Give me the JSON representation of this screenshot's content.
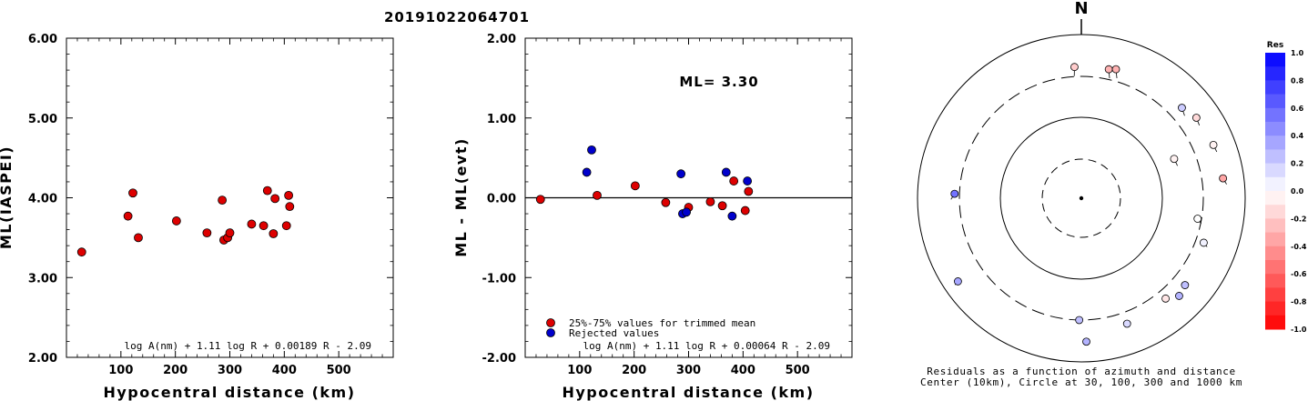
{
  "title": "20191022064701",
  "chart_data": [
    {
      "type": "scatter",
      "xlabel": "Hypocentral distance (km)",
      "ylabel": "ML(IASPEI)",
      "xlim": [
        0,
        600
      ],
      "ylim": [
        2.0,
        6.0
      ],
      "xticks": [
        "100",
        "200",
        "300",
        "400",
        "500"
      ],
      "yticks": [
        "2.00",
        "3.00",
        "4.00",
        "5.00",
        "6.00"
      ],
      "formula": "log A(nm) + 1.11 log R + 0.00189 R - 2.09",
      "series": [
        {
          "color": "#dd0000",
          "points": [
            [
              28,
              3.32
            ],
            [
              113,
              3.77
            ],
            [
              122,
              4.06
            ],
            [
              132,
              3.5
            ],
            [
              202,
              3.71
            ],
            [
              258,
              3.56
            ],
            [
              286,
              3.97
            ],
            [
              289,
              3.47
            ],
            [
              296,
              3.5
            ],
            [
              300,
              3.56
            ],
            [
              340,
              3.67
            ],
            [
              362,
              3.65
            ],
            [
              369,
              4.09
            ],
            [
              380,
              3.55
            ],
            [
              383,
              3.99
            ],
            [
              404,
              3.65
            ],
            [
              408,
              4.03
            ],
            [
              410,
              3.89
            ]
          ]
        }
      ]
    },
    {
      "type": "scatter",
      "xlabel": "Hypocentral distance (km)",
      "ylabel": "ML - ML(evt)",
      "xlim": [
        0,
        600
      ],
      "ylim": [
        -2.0,
        2.0
      ],
      "xticks": [
        "100",
        "200",
        "300",
        "400",
        "500"
      ],
      "yticks": [
        "-2.00",
        "-1.00",
        "0.00",
        "1.00",
        "2.00"
      ],
      "annotation": "ML= 3.30",
      "formula": "log A(nm) + 1.11 log R + 0.00064 R - 2.09",
      "legend": [
        "25%-75% values for trimmed mean",
        "Rejected values"
      ],
      "series": [
        {
          "name": "25%-75% values for trimmed mean",
          "color": "#dd0000",
          "points": [
            [
              28,
              -0.02
            ],
            [
              132,
              0.03
            ],
            [
              202,
              0.15
            ],
            [
              258,
              -0.06
            ],
            [
              300,
              -0.12
            ],
            [
              340,
              -0.05
            ],
            [
              362,
              -0.1
            ],
            [
              383,
              0.21
            ],
            [
              404,
              -0.16
            ],
            [
              410,
              0.08
            ]
          ]
        },
        {
          "name": "Rejected values",
          "color": "#0000cc",
          "points": [
            [
              113,
              0.32
            ],
            [
              122,
              0.6
            ],
            [
              286,
              0.3
            ],
            [
              289,
              -0.2
            ],
            [
              296,
              -0.18
            ],
            [
              369,
              0.32
            ],
            [
              380,
              -0.23
            ],
            [
              408,
              0.21
            ]
          ]
        }
      ]
    },
    {
      "type": "scatter",
      "north_label": "N",
      "caption_line1": "Residuals as a function of azimuth and distance",
      "caption_line2": "Center (10km), Circle at 30, 100, 300 and 1000 km",
      "colorbar_title": "Res",
      "colorbar_ticks": [
        "1.0",
        "0.8",
        "0.6",
        "0.4",
        "0.2",
        "0.0",
        "-0.2",
        "-0.4",
        "-0.6",
        "-0.8",
        "-1.0"
      ],
      "points": [
        {
          "az": 67,
          "dist": 170,
          "res": -0.05
        },
        {
          "az": 357,
          "dist": 395,
          "res": -0.2
        },
        {
          "az": 12,
          "dist": 400,
          "res": -0.3
        },
        {
          "az": 15,
          "dist": 420,
          "res": -0.3
        },
        {
          "az": 48,
          "dist": 440,
          "res": 0.2
        },
        {
          "az": 55,
          "dist": 510,
          "res": -0.15
        },
        {
          "az": 68,
          "dist": 540,
          "res": -0.05
        },
        {
          "az": 82,
          "dist": 550,
          "res": -0.35
        },
        {
          "az": 100,
          "dist": 270,
          "res": 0.0
        },
        {
          "az": 110,
          "dist": 380,
          "res": 0.05
        },
        {
          "az": 130,
          "dist": 440,
          "res": 0.25
        },
        {
          "az": 135,
          "dist": 480,
          "res": 0.3
        },
        {
          "az": 140,
          "dist": 390,
          "res": -0.1
        },
        {
          "az": 160,
          "dist": 420,
          "res": 0.15
        },
        {
          "az": 178,
          "dist": 560,
          "res": 0.3
        },
        {
          "az": 181,
          "dist": 300,
          "res": 0.25
        },
        {
          "az": 236,
          "dist": 650,
          "res": 0.35
        },
        {
          "az": 272,
          "dist": 345,
          "res": 0.55
        }
      ]
    }
  ]
}
